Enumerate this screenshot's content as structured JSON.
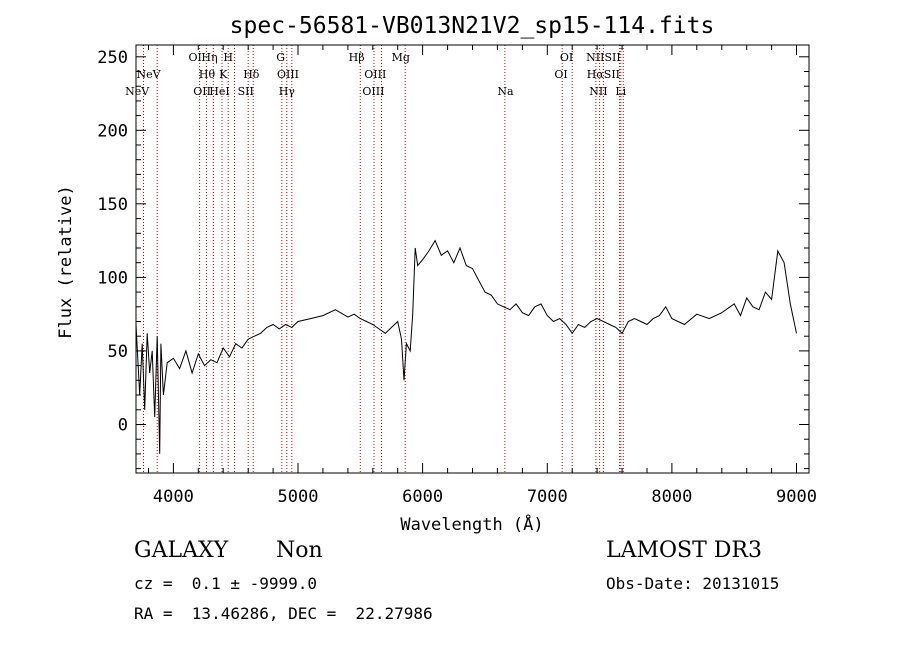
{
  "chart_data": {
    "type": "line",
    "title": "spec-56581-VB013N21V2_sp15-114.fits",
    "xlabel": "Wavelength (Å)",
    "ylabel": "Flux (relative)",
    "xlim": [
      3700,
      9100
    ],
    "ylim": [
      -33,
      258
    ],
    "xticks": [
      4000,
      5000,
      6000,
      7000,
      8000,
      9000
    ],
    "yticks": [
      0,
      50,
      100,
      150,
      200,
      250
    ],
    "grid": false,
    "series": [
      {
        "name": "spectrum",
        "x": [
          3700,
          3730,
          3750,
          3770,
          3790,
          3810,
          3830,
          3850,
          3870,
          3890,
          3900,
          3920,
          3950,
          4000,
          4050,
          4100,
          4150,
          4200,
          4250,
          4300,
          4350,
          4400,
          4450,
          4500,
          4550,
          4600,
          4650,
          4700,
          4750,
          4800,
          4850,
          4900,
          4950,
          5000,
          5100,
          5200,
          5300,
          5400,
          5450,
          5500,
          5550,
          5600,
          5650,
          5700,
          5750,
          5800,
          5830,
          5850,
          5870,
          5900,
          5920,
          5940,
          5960,
          6000,
          6050,
          6100,
          6150,
          6200,
          6250,
          6300,
          6350,
          6400,
          6450,
          6500,
          6550,
          6600,
          6650,
          6700,
          6750,
          6800,
          6850,
          6900,
          6950,
          7000,
          7050,
          7100,
          7150,
          7200,
          7250,
          7300,
          7350,
          7400,
          7450,
          7500,
          7550,
          7600,
          7650,
          7700,
          7750,
          7800,
          7850,
          7900,
          7950,
          8000,
          8100,
          8200,
          8300,
          8400,
          8500,
          8550,
          8600,
          8650,
          8700,
          8750,
          8800,
          8850,
          8900,
          8950,
          9000
        ],
        "y": [
          68,
          20,
          55,
          10,
          62,
          35,
          50,
          5,
          60,
          -20,
          55,
          20,
          42,
          45,
          38,
          50,
          35,
          48,
          40,
          44,
          42,
          52,
          46,
          55,
          52,
          58,
          60,
          62,
          66,
          68,
          65,
          68,
          66,
          70,
          72,
          74,
          78,
          73,
          75,
          72,
          70,
          68,
          65,
          62,
          66,
          70,
          58,
          30,
          55,
          50,
          75,
          120,
          108,
          112,
          118,
          125,
          115,
          118,
          110,
          120,
          108,
          106,
          98,
          90,
          88,
          82,
          80,
          78,
          82,
          76,
          74,
          80,
          82,
          74,
          70,
          72,
          68,
          62,
          68,
          66,
          70,
          72,
          70,
          68,
          66,
          62,
          70,
          72,
          70,
          68,
          72,
          74,
          80,
          72,
          68,
          75,
          72,
          76,
          82,
          74,
          86,
          80,
          78,
          90,
          85,
          118,
          110,
          82,
          62
        ]
      }
    ],
    "lines_label_data": {
      "lines": [
        {
          "name": "NeV",
          "x": 3760
        },
        {
          "name": "NeV",
          "x": 3870
        },
        {
          "name": "OII",
          "x": 4210
        },
        {
          "name": "Hθ",
          "x": 4265
        },
        {
          "name": "Hη",
          "x": 4320
        },
        {
          "name": "HeI",
          "x": 4390
        },
        {
          "name": "K",
          "x": 4440
        },
        {
          "name": "H",
          "x": 4490
        },
        {
          "name": "SII",
          "x": 4600
        },
        {
          "name": "Hδ",
          "x": 4640
        },
        {
          "name": "G",
          "x": 4870
        },
        {
          "name": "Hγ",
          "x": 4910
        },
        {
          "name": "OIII",
          "x": 4950
        },
        {
          "name": "Hβ",
          "x": 5500
        },
        {
          "name": "OIII",
          "x": 5610
        },
        {
          "name": "OIII",
          "x": 5670
        },
        {
          "name": "Mg",
          "x": 5860
        },
        {
          "name": "Na",
          "x": 6660
        },
        {
          "name": "OI",
          "x": 7120
        },
        {
          "name": "OI",
          "x": 7200
        },
        {
          "name": "NII",
          "x": 7390
        },
        {
          "name": "Hα",
          "x": 7420
        },
        {
          "name": "NII",
          "x": 7450
        },
        {
          "name": "SII",
          "x": 7580
        },
        {
          "name": "Li",
          "x": 7590
        },
        {
          "name": "SII",
          "x": 7610
        }
      ],
      "labels": [
        {
          "text": "NeV",
          "row": 3,
          "x": 3710
        },
        {
          "text": "NeV",
          "row": 2,
          "x": 3800
        },
        {
          "text": "OII",
          "row": 3,
          "x": 4230
        },
        {
          "text": "Hθ",
          "row": 2,
          "x": 4270
        },
        {
          "text": "OI",
          "row": 1,
          "x": 4175
        },
        {
          "text": "Hη",
          "row": 1,
          "x": 4290
        },
        {
          "text": "HeI",
          "row": 3,
          "x": 4370
        },
        {
          "text": "K",
          "row": 2,
          "x": 4400
        },
        {
          "text": "H",
          "row": 1,
          "x": 4440
        },
        {
          "text": "SII",
          "row": 3,
          "x": 4580
        },
        {
          "text": "Hδ",
          "row": 2,
          "x": 4625
        },
        {
          "text": "G",
          "row": 1,
          "x": 4860
        },
        {
          "text": "OIII",
          "row": 2,
          "x": 4920
        },
        {
          "text": "Hγ",
          "row": 3,
          "x": 4910
        },
        {
          "text": "Hβ",
          "row": 1,
          "x": 5470
        },
        {
          "text": "OIII",
          "row": 2,
          "x": 5620
        },
        {
          "text": "OIII",
          "row": 3,
          "x": 5605
        },
        {
          "text": "Mg",
          "row": 1,
          "x": 5825
        },
        {
          "text": "Na",
          "row": 3,
          "x": 6665
        },
        {
          "text": "OI",
          "row": 1,
          "x": 7155
        },
        {
          "text": "OI",
          "row": 2,
          "x": 7110
        },
        {
          "text": "NIISII",
          "row": 1,
          "x": 7450
        },
        {
          "text": "HαSII",
          "row": 2,
          "x": 7450
        },
        {
          "text": "NII",
          "row": 3,
          "x": 7410
        },
        {
          "text": "Li",
          "row": 3,
          "x": 7590
        }
      ]
    }
  },
  "info": {
    "object_class": "GALAXY",
    "subclass": "Non",
    "survey": "LAMOST DR3",
    "redshift_line": "cz =  0.1 ± -9999.0",
    "obs_date_line": "Obs-Date: 20131015",
    "coords_line": "RA =  13.46286, DEC =  22.27986"
  },
  "colors": {
    "spectrum": "#000000",
    "line_marker": "#c00000"
  }
}
